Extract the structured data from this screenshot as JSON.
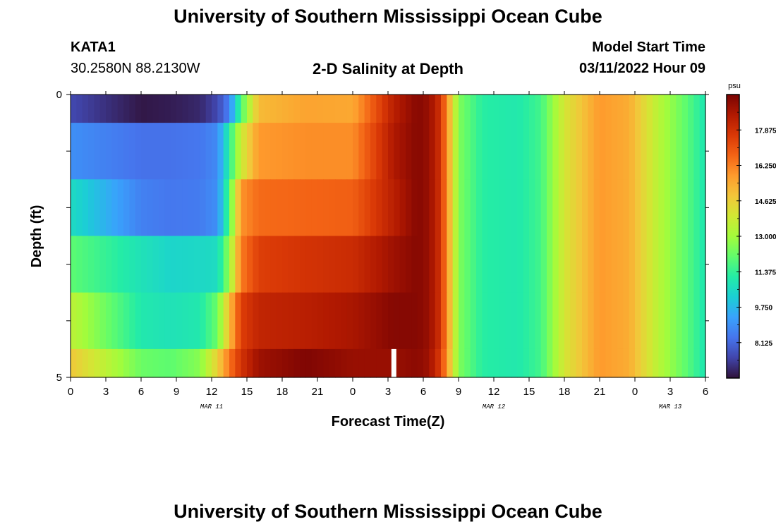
{
  "header": {
    "title": "University of Southern Mississippi Ocean Cube",
    "station_id": "KATA1",
    "coords": "30.2580N  88.2130W",
    "subtitle": "2-D Salinity at Depth",
    "model_start_label": "Model Start Time",
    "model_start_value": "03/11/2022 Hour 09"
  },
  "footer": {
    "title": "University of Southern Mississippi Ocean Cube"
  },
  "chart_data": {
    "type": "heatmap",
    "title": "2-D Salinity at Depth",
    "xlabel": "Forecast Time(Z)",
    "ylabel": "Depth (ft)",
    "x_tick_labels": [
      "0",
      "3",
      "6",
      "9",
      "12",
      "15",
      "18",
      "21",
      "0",
      "3",
      "6",
      "9",
      "12",
      "15",
      "18",
      "21",
      "0",
      "3",
      "6"
    ],
    "x_tick_hours": [
      0,
      3,
      6,
      9,
      12,
      15,
      18,
      21,
      24,
      27,
      30,
      33,
      36,
      39,
      42,
      45,
      48,
      51,
      54
    ],
    "x_range_hours": [
      0,
      54
    ],
    "date_labels": [
      {
        "text": "MAR 11",
        "hour": 12
      },
      {
        "text": "MAR 12",
        "hour": 36
      },
      {
        "text": "MAR 13",
        "hour": 51
      }
    ],
    "y_tick_labels": [
      "0",
      "5"
    ],
    "y_range": [
      0,
      5
    ],
    "depth_layers_ft": [
      0.5,
      1.5,
      2.5,
      3.5,
      4.5,
      5.0
    ],
    "colorbar": {
      "unit": "psu",
      "range": [
        6.5,
        19.5
      ],
      "tick_labels": [
        "17.875",
        "16.250",
        "14.625",
        "13.000",
        "11.375",
        "9.750",
        "8.125"
      ],
      "tick_values": [
        17.875,
        16.25,
        14.625,
        13.0,
        11.375,
        9.75,
        8.125
      ],
      "colors": [
        "#30123b",
        "#4145ab",
        "#4675ed",
        "#39a2fc",
        "#1bcfd4",
        "#24eca6",
        "#61fc6c",
        "#a4fc3b",
        "#d1e834",
        "#f3c63a",
        "#fe9b2d",
        "#f36315",
        "#d93806",
        "#b11901",
        "#7a0403"
      ]
    },
    "salinity_keyframes": {
      "hours": [
        0,
        6,
        8.5,
        11,
        12.5,
        13.5,
        14.5,
        16,
        20,
        24,
        27.5,
        29.5,
        30.5,
        31.5,
        33,
        35,
        38,
        40,
        42,
        45,
        47.5,
        50,
        52.5,
        54
      ],
      "layers": [
        [
          7.5,
          6.6,
          6.7,
          6.9,
          7.5,
          8.6,
          11.8,
          15.1,
          15.6,
          15.5,
          18.4,
          19.3,
          19.0,
          17.8,
          12.5,
          11.2,
          11.0,
          11.6,
          14.0,
          15.8,
          15.4,
          13.4,
          11.9,
          10.9
        ],
        [
          8.9,
          8.3,
          8.3,
          8.4,
          8.8,
          11.2,
          13.8,
          15.8,
          16.0,
          16.0,
          18.6,
          19.3,
          19.0,
          17.8,
          12.5,
          11.2,
          11.0,
          11.6,
          14.0,
          15.8,
          15.4,
          13.4,
          11.9,
          10.9
        ],
        [
          10.6,
          8.6,
          8.4,
          8.5,
          8.9,
          11.8,
          15.9,
          16.6,
          16.7,
          16.8,
          18.4,
          19.3,
          19.0,
          17.8,
          12.5,
          11.2,
          11.0,
          11.6,
          14.0,
          15.8,
          15.4,
          13.4,
          11.9,
          10.9
        ],
        [
          12.0,
          10.8,
          10.4,
          10.5,
          10.6,
          12.8,
          16.3,
          17.5,
          17.8,
          18.0,
          18.9,
          19.3,
          19.0,
          17.8,
          12.5,
          11.2,
          11.0,
          11.6,
          14.0,
          15.8,
          15.4,
          13.4,
          11.9,
          10.9
        ],
        [
          13.5,
          11.0,
          10.8,
          11.0,
          12.2,
          15.0,
          17.5,
          18.2,
          18.4,
          18.7,
          19.3,
          19.3,
          19.0,
          17.8,
          12.5,
          11.2,
          11.0,
          11.6,
          14.0,
          15.8,
          15.4,
          13.4,
          11.9,
          10.9
        ],
        [
          14.8,
          12.2,
          12.0,
          12.6,
          14.6,
          16.4,
          17.8,
          18.9,
          19.4,
          19.0,
          19.0,
          19.2,
          18.9,
          17.5,
          12.5,
          11.2,
          11.0,
          11.6,
          14.0,
          15.8,
          15.4,
          13.4,
          11.9,
          10.9
        ]
      ]
    },
    "missing_data_marker_hour": 27.5
  }
}
